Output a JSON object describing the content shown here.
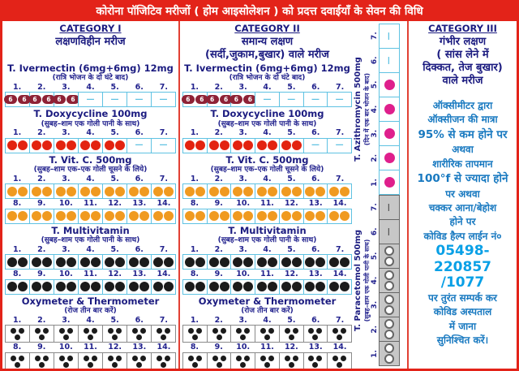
{
  "title": "कोरोना पॉजिटिव मरीजों ( होम आइसोलेशन ) को प्रदत्त दवाईयाँ के सेवन की विधि",
  "colors": {
    "header_red": "#e32319",
    "border_red": "#e24034",
    "navy_text": "#1b1b80",
    "advice_blue": "#1879c0",
    "phone_blue": "#09a0e6",
    "ivermectin_pill": "#8e2236",
    "doxycycline_pill": "#e32310",
    "vitamin_c_pill": "#f09a20",
    "multivitamin_pill": "#1b1b1b",
    "azithromycin_pill": "#df1f8c",
    "paracetamol_pill": "#ffffff",
    "cell_border_blue": "#5fc2e2",
    "paracetamol_strip_gray": "#c7c7c7"
  },
  "category1": {
    "heading": "CATEGORY I",
    "patient_lines": [
      "लक्षणविहीन मरीज"
    ],
    "medications": [
      {
        "name": "T. Ivermectin (6mg+6mg) 12mg",
        "instruction": "(रात्रि भोजन के दो घंटे बाद)",
        "pill": "maroon6",
        "rows": [
          {
            "days": [
              "1.",
              "2.",
              "3.",
              "4.",
              "5.",
              "6.",
              "7."
            ],
            "counts": [
              2,
              2,
              2,
              0,
              0,
              0,
              0
            ]
          }
        ]
      },
      {
        "name": "T. Doxycycline 100mg",
        "instruction": "(सुबह–शाम एक गोली पानी के साथ)",
        "pill": "red",
        "rows": [
          {
            "days": [
              "1.",
              "2.",
              "3.",
              "4.",
              "5.",
              "6.",
              "7."
            ],
            "counts": [
              2,
              2,
              2,
              2,
              2,
              0,
              0
            ]
          }
        ]
      },
      {
        "name": "T. Vit. C. 500mg",
        "instruction": "(सुबह–शाम एक–एक गोली चूसने के लिये)",
        "pill": "orange",
        "rows": [
          {
            "days": [
              "1.",
              "2.",
              "3.",
              "4.",
              "5.",
              "6.",
              "7."
            ],
            "counts": [
              2,
              2,
              2,
              2,
              2,
              2,
              2
            ]
          },
          {
            "days": [
              "8.",
              "9.",
              "10.",
              "11.",
              "12.",
              "13.",
              "14."
            ],
            "counts": [
              2,
              2,
              2,
              2,
              2,
              2,
              2
            ]
          }
        ]
      },
      {
        "name": "T. Multivitamin",
        "instruction": "(सुबह–शाम एक गोली पानी के साथ)",
        "pill": "black",
        "rows": [
          {
            "days": [
              "1.",
              "2.",
              "3.",
              "4.",
              "5.",
              "6.",
              "7."
            ],
            "counts": [
              2,
              2,
              2,
              2,
              2,
              2,
              2
            ]
          },
          {
            "days": [
              "8.",
              "9.",
              "10.",
              "11.",
              "12.",
              "13.",
              "14."
            ],
            "counts": [
              2,
              2,
              2,
              2,
              2,
              2,
              2
            ]
          }
        ]
      },
      {
        "name": "Oxymeter & Thermometer",
        "instruction": "(रोज तीन बार करें)",
        "pill": "dot3",
        "theme": "gray",
        "rows": [
          {
            "days": [
              "1.",
              "2.",
              "3.",
              "4.",
              "5.",
              "6.",
              "7."
            ],
            "counts": [
              3,
              3,
              3,
              3,
              3,
              3,
              3
            ]
          },
          {
            "days": [
              "8.",
              "9.",
              "10.",
              "11.",
              "12.",
              "13.",
              "14."
            ],
            "counts": [
              3,
              3,
              3,
              3,
              3,
              3,
              3
            ]
          }
        ]
      }
    ]
  },
  "category2": {
    "heading": "CATEGORY II",
    "patient_lines": [
      "समान्य लक्षण",
      "(सर्दी,जुकाम,बुखार) वाले मरीज"
    ],
    "medications": [
      {
        "name": "T. Ivermectin (6mg+6mg) 12mg",
        "instruction": "(रात्रि भोजन के दो घंटे बाद)",
        "pill": "maroon6",
        "rows": [
          {
            "days": [
              "1.",
              "2.",
              "3.",
              "4.",
              "5.",
              "6.",
              "7."
            ],
            "counts": [
              2,
              2,
              2,
              0,
              0,
              0,
              0
            ]
          }
        ]
      },
      {
        "name": "T. Doxycycline 100mg",
        "instruction": "(सुबह–शाम एक गोली पानी के साथ)",
        "pill": "red",
        "rows": [
          {
            "days": [
              "1.",
              "2.",
              "3.",
              "4.",
              "5.",
              "6.",
              "7."
            ],
            "counts": [
              2,
              2,
              2,
              2,
              2,
              0,
              0
            ]
          }
        ]
      },
      {
        "name": "T. Vit. C. 500mg",
        "instruction": "(सुबह–शाम एक–एक गोली चूसने के लिये)",
        "pill": "orange",
        "rows": [
          {
            "days": [
              "1.",
              "2.",
              "3.",
              "4.",
              "5.",
              "6.",
              "7."
            ],
            "counts": [
              2,
              2,
              2,
              2,
              2,
              2,
              2
            ]
          },
          {
            "days": [
              "8.",
              "9.",
              "10.",
              "11.",
              "12.",
              "13.",
              "14."
            ],
            "counts": [
              2,
              2,
              2,
              2,
              2,
              2,
              2
            ]
          }
        ]
      },
      {
        "name": "T. Multivitamin",
        "instruction": "(सुबह–शाम एक गोली पानी के साथ)",
        "pill": "black",
        "rows": [
          {
            "days": [
              "1.",
              "2.",
              "3.",
              "4.",
              "5.",
              "6.",
              "7."
            ],
            "counts": [
              2,
              2,
              2,
              2,
              2,
              2,
              2
            ]
          },
          {
            "days": [
              "8.",
              "9.",
              "10.",
              "11.",
              "12.",
              "13.",
              "14."
            ],
            "counts": [
              2,
              2,
              2,
              2,
              2,
              2,
              2
            ]
          }
        ]
      },
      {
        "name": "Oxymeter & Thermometer",
        "instruction": "(रोज तीन बार करें)",
        "pill": "dot3",
        "theme": "gray",
        "rows": [
          {
            "days": [
              "1.",
              "2.",
              "3.",
              "4.",
              "5.",
              "6.",
              "7."
            ],
            "counts": [
              3,
              3,
              3,
              3,
              3,
              3,
              3
            ]
          },
          {
            "days": [
              "8.",
              "9.",
              "10.",
              "11.",
              "12.",
              "13.",
              "14."
            ],
            "counts": [
              3,
              3,
              3,
              3,
              3,
              3,
              3
            ]
          }
        ]
      }
    ],
    "vertical_medications": [
      {
        "name": "T. Azithromycin 500mg",
        "instruction": "(दिन में एक बार भोजन के बाद)",
        "pill": "pink",
        "rows": [
          {
            "days": [
              "1.",
              "2.",
              "3.",
              "4.",
              "5.",
              "6.",
              "7."
            ],
            "counts": [
              1,
              1,
              1,
              1,
              1,
              0,
              0
            ]
          }
        ]
      },
      {
        "name": "T. Paracetomol 500mg",
        "instruction": "(सुबह–शाम एक गोली पानी के साथ)",
        "pill": "white",
        "theme": "pgray",
        "rows": [
          {
            "days": [
              "1.",
              "2.",
              "3.",
              "4.",
              "5.",
              "6.",
              "7."
            ],
            "counts": [
              2,
              2,
              2,
              2,
              2,
              0,
              0
            ]
          }
        ]
      }
    ]
  },
  "category3": {
    "heading": "CATEGORY III",
    "patient_lines": [
      "गंभीर लक्षण",
      "( सांस लेने में",
      "दिक्कत, तेज बुखार)",
      "वाले मरीज"
    ],
    "advice_lines": [
      {
        "text": "ऑक्सीमीटर द्वारा"
      },
      {
        "text": "ऑक्सीजन की मात्रा"
      },
      {
        "text": "95% से कम होने पर",
        "style": "em"
      },
      {
        "text": "अथवा"
      },
      {
        "text": "शारीरिक तापमान"
      },
      {
        "text": "100°f से ज्यादा होने",
        "style": "em"
      },
      {
        "text": "पर अथवा"
      },
      {
        "text": "चक्कर आना/बेहोश"
      },
      {
        "text": "होने पर"
      },
      {
        "text": "कोविड हैल्प लाईन नं०"
      },
      {
        "text": "05498-220857",
        "style": "phone"
      },
      {
        "text": "/1077",
        "style": "phone"
      },
      {
        "text": "पर तुरंत सम्पर्क कर"
      },
      {
        "text": "कोविड अस्पताल"
      },
      {
        "text": "में जाना"
      },
      {
        "text": "सुनिश्चित करें।"
      }
    ]
  }
}
